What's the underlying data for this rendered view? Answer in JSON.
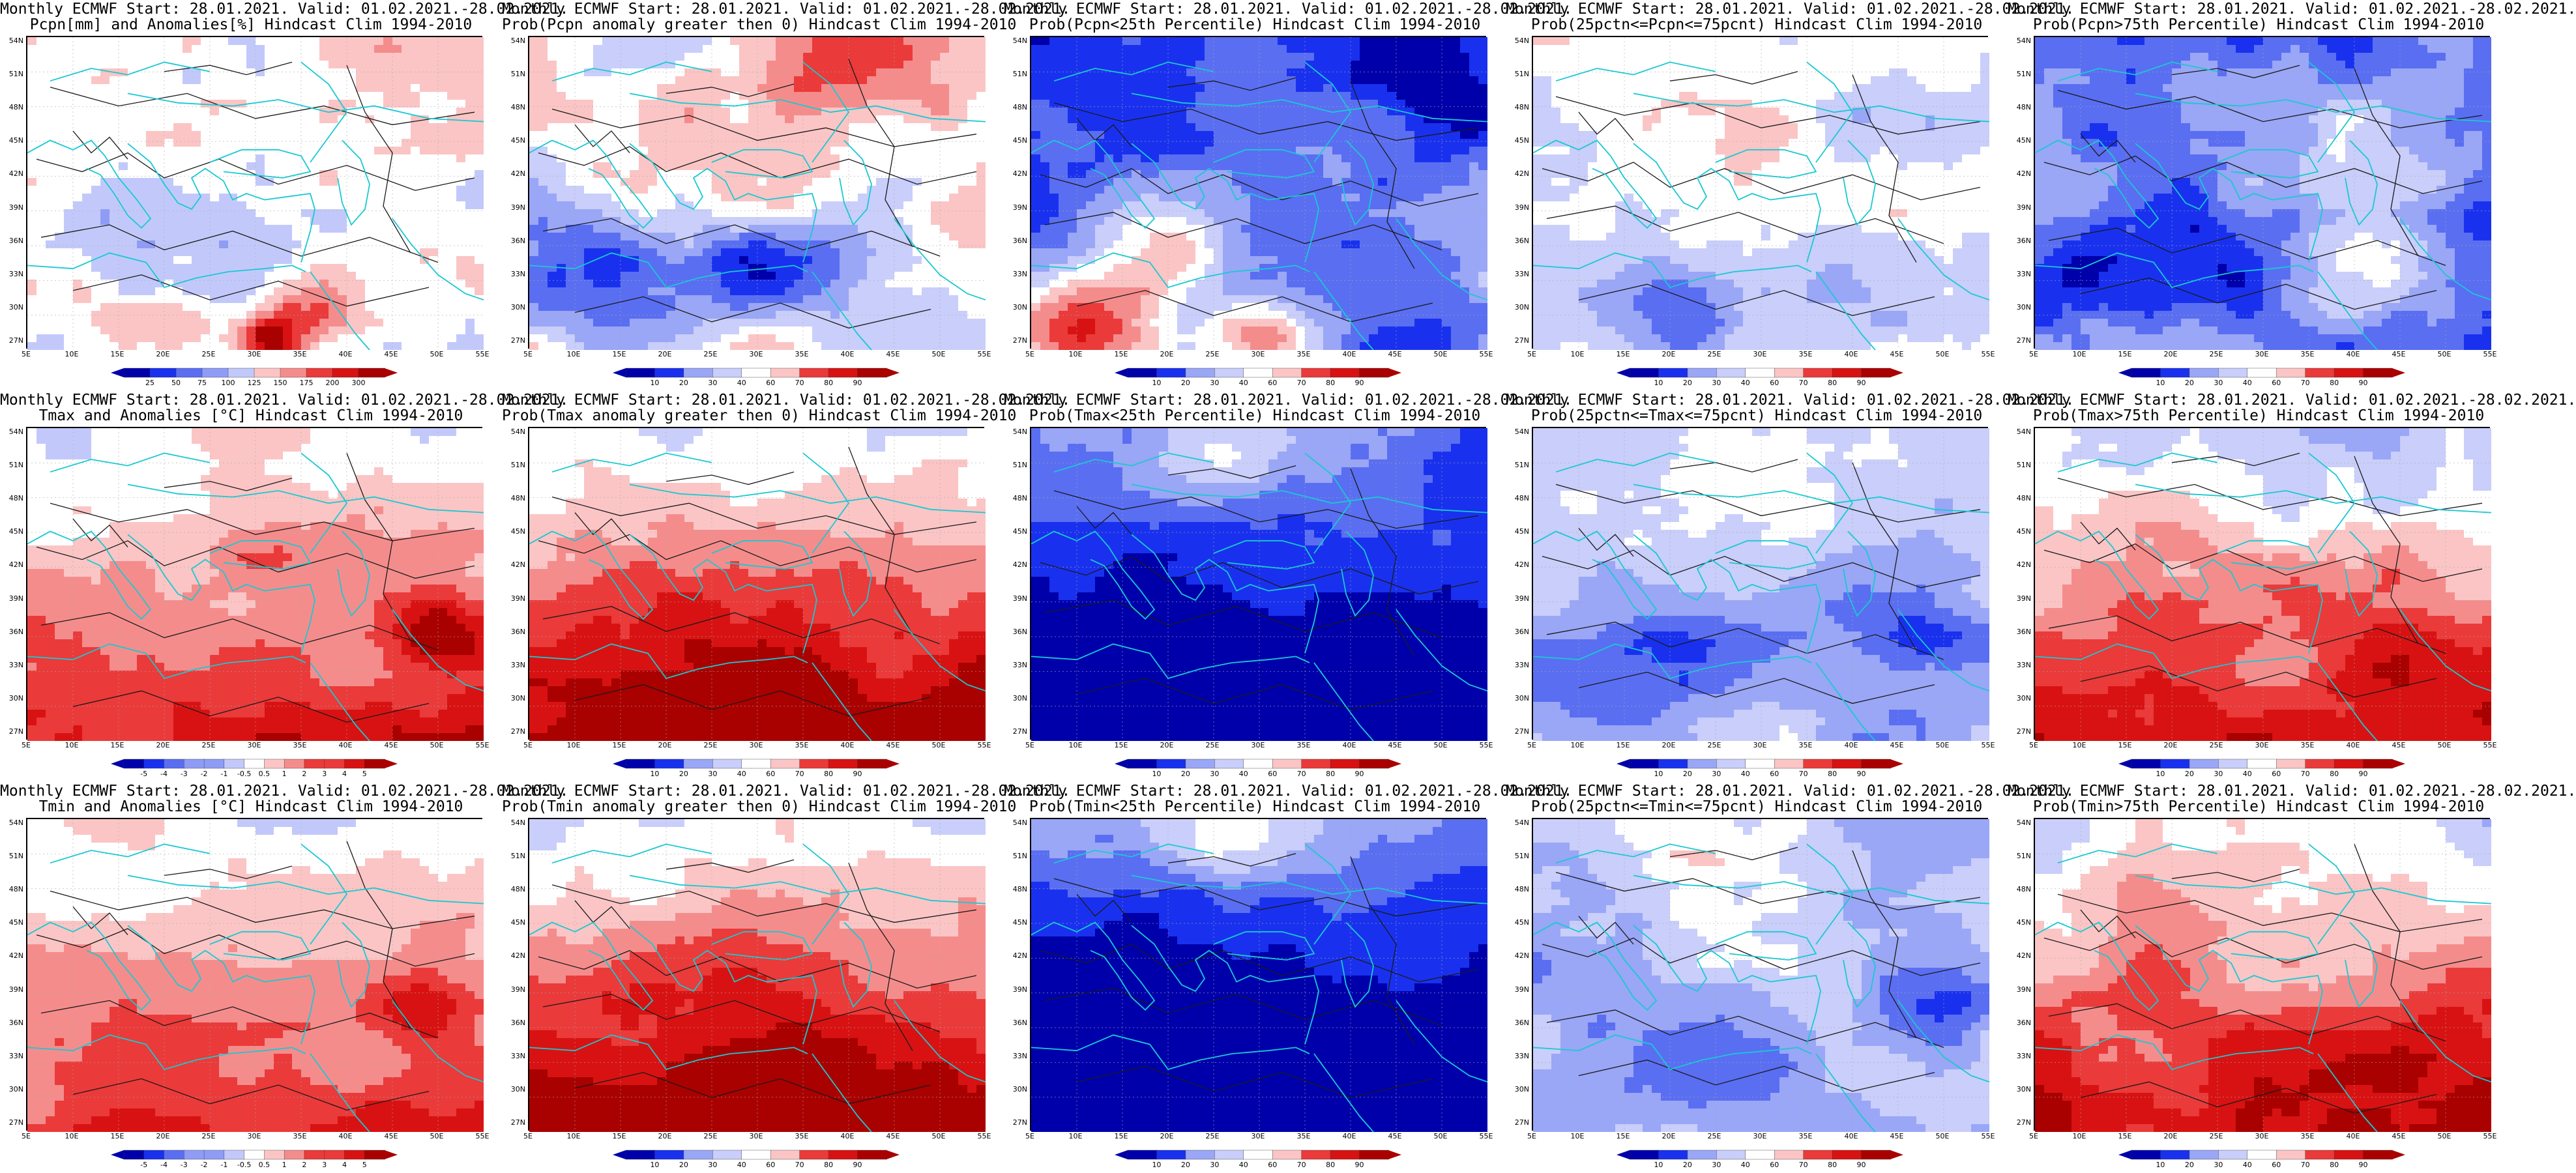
{
  "palettes": {
    "prob": [
      "#0000ab",
      "#1931ee",
      "#5a6ef2",
      "#9aa6f6",
      "#c9cefa",
      "#ffffff",
      "#fbc5c5",
      "#f58c8c",
      "#ea3a3a",
      "#d81212",
      "#a90000"
    ],
    "anom": [
      "#0000ab",
      "#1931ee",
      "#5a6ef2",
      "#8f9cf5",
      "#c2c9fa",
      "#ffffff",
      "#fbc5c5",
      "#f58c8c",
      "#ea3a3a",
      "#d81212",
      "#a90000"
    ]
  },
  "lat_labels": [
    "54N",
    "51N",
    "48N",
    "45N",
    "42N",
    "39N",
    "36N",
    "33N",
    "30N",
    "27N"
  ],
  "lon_labels": [
    "5E",
    "10E",
    "15E",
    "20E",
    "25E",
    "30E",
    "35E",
    "40E",
    "45E",
    "50E",
    "55E"
  ],
  "colorbars": {
    "pcpn_anom": [
      "25",
      "50",
      "75",
      "100",
      "125",
      "150",
      "175",
      "200",
      "300"
    ],
    "prob": [
      "10",
      "20",
      "30",
      "40",
      "60",
      "70",
      "80",
      "90"
    ],
    "temp_anom": [
      "-5",
      "-4",
      "-3",
      "-2",
      "-1",
      "-0.5",
      "0.5",
      "1",
      "2",
      "3",
      "4",
      "5"
    ]
  },
  "panels": [
    {
      "line1": "Monthly ECMWF Start: 28.01.2021. Valid: 01.02.2021.-28.02.2021.",
      "line2": "Pcpn[mm] and Anomalies[%] Hindcast Clim 1994-2010",
      "cbar": "pcpn_anom",
      "field": {
        "base": 5,
        "nb": 0.55,
        "lat": 0,
        "blobs": [
          [
            0.6,
            0.85,
            0.12,
            3
          ],
          [
            0.52,
            0.95,
            0.06,
            5
          ],
          [
            0.2,
            0.6,
            0.2,
            -2
          ],
          [
            0.8,
            0.3,
            0.25,
            1
          ],
          [
            0.45,
            0.2,
            0.2,
            1
          ]
        ]
      }
    },
    {
      "line1": "Monthly ECMWF Start: 28.01.2021. Valid: 01.02.2021.-28.02.2021.",
      "line2": "Prob(Pcpn anomaly greater then 0) Hindcast Clim 1994-2010",
      "cbar": "prob",
      "field": {
        "base": 5,
        "nb": 0.6,
        "lat": 0,
        "blobs": [
          [
            0.75,
            0.05,
            0.2,
            4
          ],
          [
            0.15,
            0.75,
            0.2,
            -4
          ],
          [
            0.5,
            0.7,
            0.18,
            -3
          ],
          [
            0.6,
            0.35,
            0.2,
            1
          ]
        ]
      }
    },
    {
      "line1": "Monthly ECMWF Start: 28.01.2021. Valid: 01.02.2021.-28.02.2021.",
      "line2": "Prob(Pcpn<25th Percentile) Hindcast Clim 1994-2010",
      "cbar": "prob",
      "field": {
        "base": 2,
        "nb": 0.55,
        "lat": 0,
        "blobs": [
          [
            0.1,
            0.9,
            0.2,
            6
          ],
          [
            0.5,
            0.95,
            0.12,
            5
          ],
          [
            0.3,
            0.65,
            0.15,
            3
          ],
          [
            0.85,
            0.1,
            0.2,
            -2
          ]
        ]
      }
    },
    {
      "line1": "Monthly ECMWF Start: 28.01.2021. Valid: 01.02.2021.-28.02.2021.",
      "line2": "Prob(25pctn<=Pcpn<=75pcnt) Hindcast Clim 1994-2010",
      "cbar": "prob",
      "field": {
        "base": 4.6,
        "nb": 0.45,
        "lat": 0,
        "blobs": [
          [
            0.3,
            0.9,
            0.18,
            -3
          ],
          [
            0.7,
            0.8,
            0.2,
            -2
          ],
          [
            0.5,
            0.45,
            0.2,
            1
          ]
        ]
      }
    },
    {
      "line1": "Monthly ECMWF Start: 28.01.2021. Valid: 01.02.2021.-28.02.2021.",
      "line2": "Prob(Pcpn>75th Percentile) Hindcast Clim 1994-2010",
      "cbar": "prob",
      "field": {
        "base": 2.5,
        "nb": 0.6,
        "lat": 0,
        "blobs": [
          [
            0.2,
            0.7,
            0.25,
            -1
          ],
          [
            0.6,
            0.4,
            0.2,
            2
          ],
          [
            0.7,
            0.75,
            0.15,
            2
          ],
          [
            0.4,
            0.15,
            0.2,
            1
          ]
        ]
      }
    },
    {
      "line1": "Monthly ECMWF Start: 28.01.2021. Valid: 01.02.2021.-28.02.2021.",
      "line2": "Tmax and Anomalies [°C] Hindcast Clim 1994-2010",
      "cbar": "temp_anom",
      "field": {
        "base": 6,
        "nb": 0.4,
        "lat": 1,
        "blobs": [
          [
            0.9,
            0.65,
            0.12,
            3
          ],
          [
            0.5,
            0.4,
            0.12,
            1.5
          ]
        ]
      }
    },
    {
      "line1": "Monthly ECMWF Start: 28.01.2021. Valid: 01.02.2021.-28.02.2021.",
      "line2": "Prob(Tmax anomaly greater then 0) Hindcast Clim 1994-2010",
      "cbar": "prob",
      "field": {
        "base": 6,
        "nb": 0.4,
        "lat": 1.4,
        "blobs": [
          [
            0.5,
            0.8,
            0.3,
            1.5
          ]
        ]
      }
    },
    {
      "line1": "Monthly ECMWF Start: 28.01.2021. Valid: 01.02.2021.-28.02.2021.",
      "line2": "Prob(Tmax<25th Percentile) Hindcast Clim 1994-2010",
      "cbar": "prob",
      "field": {
        "base": 1,
        "nb": 0.35,
        "lat": -0.9,
        "blobs": [
          [
            0.4,
            0.05,
            0.2,
            3
          ]
        ]
      }
    },
    {
      "line1": "Monthly ECMWF Start: 28.01.2021. Valid: 01.02.2021.-28.02.2021.",
      "line2": "Prob(25pctn<=Tmax<=75pcnt) Hindcast Clim 1994-2010",
      "cbar": "prob",
      "field": {
        "base": 3.5,
        "nb": 0.45,
        "lat": 0,
        "blobs": [
          [
            0.4,
            0.2,
            0.25,
            1.5
          ],
          [
            0.3,
            0.7,
            0.2,
            -1.5
          ],
          [
            0.85,
            0.65,
            0.15,
            -2
          ]
        ]
      }
    },
    {
      "line1": "Monthly ECMWF Start: 28.01.2021. Valid: 01.02.2021.-28.02.2021.",
      "line2": "Prob(Tmax>75th Percentile) Hindcast Clim 1994-2010",
      "cbar": "prob",
      "field": {
        "base": 5.5,
        "nb": 0.45,
        "lat": 1.4,
        "blobs": [
          [
            0.85,
            0.7,
            0.15,
            1
          ]
        ]
      }
    },
    {
      "line1": "Monthly ECMWF Start: 28.01.2021. Valid: 01.02.2021.-28.02.2021.",
      "line2": "Tmin and Anomalies [°C] Hindcast Clim 1994-2010",
      "cbar": "temp_anom",
      "field": {
        "base": 6,
        "nb": 0.35,
        "lat": 0.9,
        "blobs": [
          [
            0.85,
            0.6,
            0.12,
            2.5
          ]
        ]
      }
    },
    {
      "line1": "Monthly ECMWF Start: 28.01.2021. Valid: 01.02.2021.-28.02.2021.",
      "line2": "Prob(Tmin anomaly greater then 0) Hindcast Clim 1994-2010",
      "cbar": "prob",
      "field": {
        "base": 6.5,
        "nb": 0.35,
        "lat": 1.6,
        "blobs": []
      }
    },
    {
      "line1": "Monthly ECMWF Start: 28.01.2021. Valid: 01.02.2021.-28.02.2021.",
      "line2": "Prob(Tmin<25th Percentile) Hindcast Clim 1994-2010",
      "cbar": "prob",
      "field": {
        "base": 1,
        "nb": 0.3,
        "lat": -1.1,
        "blobs": [
          [
            0.45,
            0.05,
            0.2,
            3
          ]
        ]
      }
    },
    {
      "line1": "Monthly ECMWF Start: 28.01.2021. Valid: 01.02.2021.-28.02.2021.",
      "line2": "Prob(25pctn<=Tmin<=75pcnt) Hindcast Clim 1994-2010",
      "cbar": "prob",
      "field": {
        "base": 3.5,
        "nb": 0.45,
        "lat": 0,
        "blobs": [
          [
            0.4,
            0.2,
            0.25,
            1.8
          ],
          [
            0.3,
            0.75,
            0.2,
            -1.5
          ],
          [
            0.85,
            0.6,
            0.15,
            -2
          ]
        ]
      }
    },
    {
      "line1": "Monthly ECMWF Start: 28.01.2021. Valid: 01.02.2021.-28.02.2021.",
      "line2": "Prob(Tmin>75th Percentile) Hindcast Clim 1994-2010",
      "cbar": "prob",
      "field": {
        "base": 6,
        "nb": 0.45,
        "lat": 1.3,
        "blobs": [
          [
            0.5,
            0.8,
            0.2,
            1
          ]
        ]
      }
    }
  ]
}
